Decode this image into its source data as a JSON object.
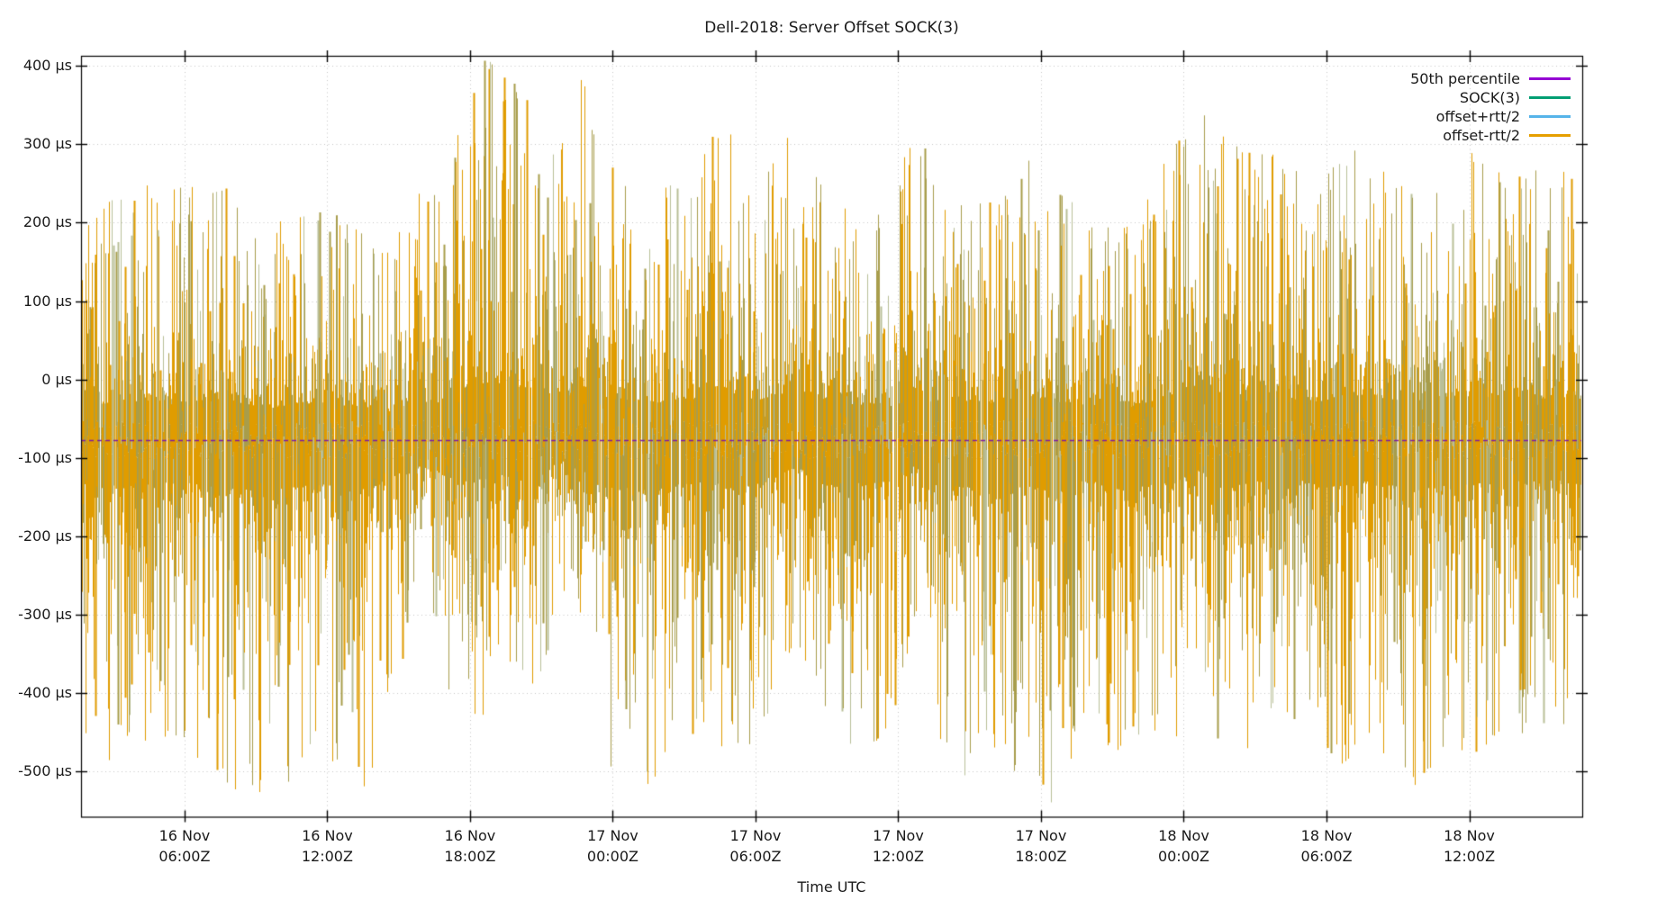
{
  "chart_data": {
    "type": "line",
    "subtype": "impulse-noise-time-series",
    "title": "Dell-2018: Server Offset SOCK(3)",
    "xlabel": "Time UTC",
    "ylabel": "",
    "y_unit": "µs",
    "ylim": [
      -558,
      413
    ],
    "x_span_hours": 63.1,
    "grid": true,
    "legend_position": "top-right",
    "y_ticks": [
      {
        "value": 400,
        "label": "400 µs"
      },
      {
        "value": 300,
        "label": "300 µs"
      },
      {
        "value": 200,
        "label": "200 µs"
      },
      {
        "value": 100,
        "label": "100 µs"
      },
      {
        "value": 0,
        "label": "0 µs"
      },
      {
        "value": -100,
        "label": "-100 µs"
      },
      {
        "value": -200,
        "label": "-200 µs"
      },
      {
        "value": -300,
        "label": "-300 µs"
      },
      {
        "value": -400,
        "label": "-400 µs"
      },
      {
        "value": -500,
        "label": "-500 µs"
      }
    ],
    "x_ticks": [
      {
        "hour": 4.35,
        "line1": "16 Nov",
        "line2": "06:00Z"
      },
      {
        "hour": 10.35,
        "line1": "16 Nov",
        "line2": "12:00Z"
      },
      {
        "hour": 16.35,
        "line1": "16 Nov",
        "line2": "18:00Z"
      },
      {
        "hour": 22.35,
        "line1": "17 Nov",
        "line2": "00:00Z"
      },
      {
        "hour": 28.35,
        "line1": "17 Nov",
        "line2": "06:00Z"
      },
      {
        "hour": 34.35,
        "line1": "17 Nov",
        "line2": "12:00Z"
      },
      {
        "hour": 40.35,
        "line1": "17 Nov",
        "line2": "18:00Z"
      },
      {
        "hour": 46.35,
        "line1": "18 Nov",
        "line2": "00:00Z"
      },
      {
        "hour": 52.35,
        "line1": "18 Nov",
        "line2": "06:00Z"
      },
      {
        "hour": 58.35,
        "line1": "18 Nov",
        "line2": "12:00Z"
      }
    ],
    "series": [
      {
        "name": "50th percentile",
        "color": "#9400d3",
        "style": "line",
        "value_us": -77
      },
      {
        "name": "SOCK(3)",
        "color": "#009e73",
        "style": "impulses"
      },
      {
        "name": "offset+rtt/2",
        "color": "#56b4e9",
        "style": "impulses"
      },
      {
        "name": "offset-rtt/2",
        "color": "#e69f00",
        "style": "impulses"
      }
    ],
    "median_us": -77,
    "envelope_us": [
      [
        0,
        205,
        -480
      ],
      [
        2,
        250,
        -500
      ],
      [
        4,
        245,
        -455
      ],
      [
        6,
        250,
        -520
      ],
      [
        8,
        195,
        -535
      ],
      [
        10,
        240,
        -480
      ],
      [
        12,
        185,
        -530
      ],
      [
        13,
        165,
        -420
      ],
      [
        14,
        255,
        -310
      ],
      [
        15,
        235,
        -360
      ],
      [
        16,
        345,
        -460
      ],
      [
        17,
        410,
        -430
      ],
      [
        18,
        390,
        -360
      ],
      [
        19,
        345,
        -480
      ],
      [
        20,
        300,
        -260
      ],
      [
        21,
        390,
        -310
      ],
      [
        22,
        290,
        -510
      ],
      [
        24,
        235,
        -520
      ],
      [
        26,
        275,
        -455
      ],
      [
        27,
        365,
        -480
      ],
      [
        28,
        245,
        -500
      ],
      [
        30,
        330,
        -330
      ],
      [
        32,
        230,
        -480
      ],
      [
        34,
        205,
        -455
      ],
      [
        35,
        360,
        -310
      ],
      [
        36,
        225,
        -500
      ],
      [
        38,
        225,
        -510
      ],
      [
        40,
        290,
        -505
      ],
      [
        41,
        245,
        -555
      ],
      [
        42,
        225,
        -455
      ],
      [
        44,
        195,
        -480
      ],
      [
        46,
        310,
        -465
      ],
      [
        47,
        400,
        -340
      ],
      [
        48,
        315,
        -520
      ],
      [
        50,
        290,
        -425
      ],
      [
        52,
        245,
        -465
      ],
      [
        53,
        290,
        -500
      ],
      [
        54,
        295,
        -455
      ],
      [
        56,
        235,
        -520
      ],
      [
        58,
        300,
        -485
      ],
      [
        60,
        255,
        -455
      ],
      [
        62,
        280,
        -445
      ],
      [
        63.1,
        260,
        -450
      ]
    ],
    "render": {
      "palette": [
        "#e09c00",
        "#a89d4b",
        "#b9bf98"
      ],
      "weights": [
        0.55,
        0.33,
        0.12
      ],
      "seed": 1337,
      "gap_prob": 0.06,
      "grid_color": "#c6c6c6",
      "axis_color": "#000000",
      "median_color": "#7a16a8",
      "text_color": "#1a1a1a"
    },
    "description": "NTP server clock offset noise band: impulses spanning roughly -550 µs to +410 µs around a 50th-percentile level near -77 µs, 16 Nov through 18 Nov (UTC)."
  }
}
